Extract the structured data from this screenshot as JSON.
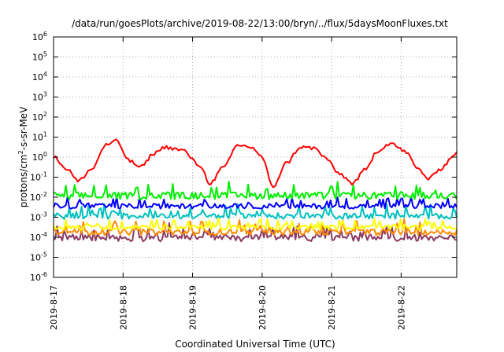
{
  "chart_data": {
    "type": "line",
    "title": "/data/run/goesPlots/archive/2019-08-22/13:00/bryn/../flux/5daysMoonFluxes.txt",
    "xlabel": "Coordinated Universal Time (UTC)",
    "ylabel_main": "protons/cm",
    "ylabel_sup": "2",
    "ylabel_rest": "-s-sr-MeV",
    "yscale": "log",
    "ylim_exp": [
      -6,
      6
    ],
    "y_ticks": [
      {
        "base": "10",
        "exp": "-6",
        "e": -6
      },
      {
        "base": "10",
        "exp": "-5",
        "e": -5
      },
      {
        "base": "10",
        "exp": "-4",
        "e": -4
      },
      {
        "base": "10",
        "exp": "-3",
        "e": -3
      },
      {
        "base": "10",
        "exp": "-2",
        "e": -2
      },
      {
        "base": "10",
        "exp": "-1",
        "e": -1
      },
      {
        "base": "10",
        "exp": "0",
        "e": 0
      },
      {
        "base": "10",
        "exp": "1",
        "e": 1
      },
      {
        "base": "10",
        "exp": "2",
        "e": 2
      },
      {
        "base": "10",
        "exp": "3",
        "e": 3
      },
      {
        "base": "10",
        "exp": "4",
        "e": 4
      },
      {
        "base": "10",
        "exp": "5",
        "e": 5
      },
      {
        "base": "10",
        "exp": "6",
        "e": 6
      }
    ],
    "x_range_days": [
      0,
      5.8
    ],
    "x_ticks": [
      {
        "label": "2019-8-17",
        "day": 0
      },
      {
        "label": "2019-8-18",
        "day": 1
      },
      {
        "label": "2019-8-19",
        "day": 2
      },
      {
        "label": "2019-8-20",
        "day": 3
      },
      {
        "label": "2019-8-21",
        "day": 4
      },
      {
        "label": "2019-8-22",
        "day": 5
      }
    ],
    "grid": true,
    "series": [
      {
        "color": "#ff0000",
        "style": "smooth",
        "day": [
          0,
          0.2,
          0.35,
          0.55,
          0.75,
          0.9,
          1.1,
          1.25,
          1.45,
          1.6,
          1.85,
          2.1,
          2.25,
          2.45,
          2.65,
          2.85,
          3.0,
          3.15,
          3.35,
          3.55,
          3.75,
          3.9,
          4.1,
          4.3,
          4.5,
          4.65,
          4.85,
          5.05,
          5.25,
          5.4,
          5.55,
          5.8
        ],
        "log10_value": [
          0.0,
          -0.6,
          -1.2,
          -0.6,
          0.6,
          0.8,
          -0.2,
          -0.5,
          0.2,
          0.5,
          0.35,
          -0.4,
          -1.3,
          -0.5,
          0.6,
          0.5,
          0.0,
          -1.5,
          -0.3,
          0.5,
          0.45,
          0.0,
          -0.8,
          -1.3,
          -0.6,
          0.3,
          0.7,
          0.3,
          -0.6,
          -1.1,
          -0.6,
          0.2
        ]
      },
      {
        "color": "#00ee00",
        "style": "noisy",
        "base_log10": -2.0,
        "spread": 0.35
      },
      {
        "color": "#0000ff",
        "style": "noisy",
        "base_log10": -2.5,
        "spread": 0.25
      },
      {
        "color": "#00c0c0",
        "style": "noisy",
        "base_log10": -3.0,
        "spread": 0.3
      },
      {
        "color": "#ffff00",
        "style": "noisy",
        "base_log10": -3.55,
        "spread": 0.25
      },
      {
        "color": "#ff8c00",
        "style": "noisy",
        "base_log10": -3.8,
        "spread": 0.3
      },
      {
        "color": "#8b3a62",
        "style": "noisy",
        "base_log10": -4.1,
        "spread": 0.35
      }
    ]
  }
}
